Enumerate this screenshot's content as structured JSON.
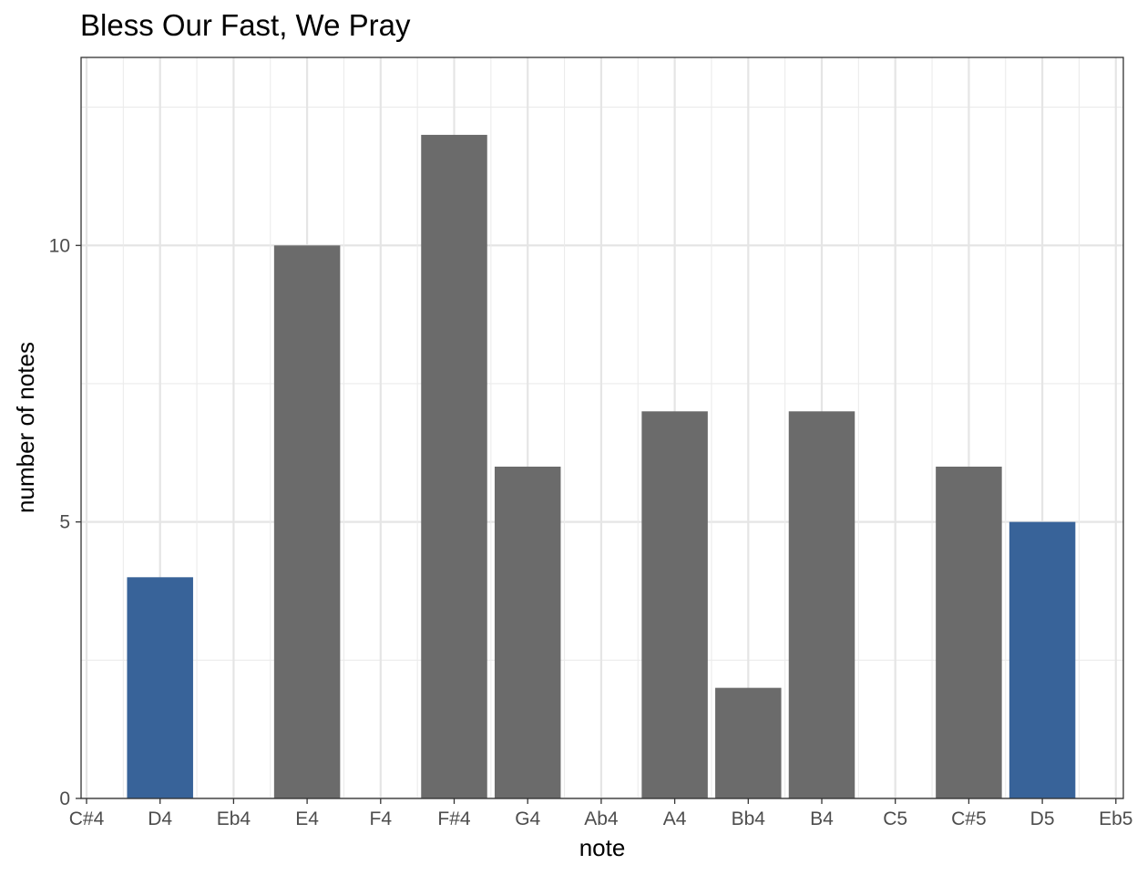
{
  "chart_data": {
    "type": "bar",
    "title": "Bless Our Fast, We Pray",
    "xlabel": "note",
    "ylabel": "number of notes",
    "categories": [
      "C#4",
      "D4",
      "Eb4",
      "E4",
      "F4",
      "F#4",
      "G4",
      "Ab4",
      "A4",
      "Bb4",
      "B4",
      "C5",
      "C#5",
      "D5",
      "Eb5"
    ],
    "values": [
      0,
      4,
      0,
      10,
      0,
      12,
      6,
      0,
      7,
      2,
      7,
      0,
      6,
      5,
      0
    ],
    "highlighted": [
      "D4",
      "D5"
    ],
    "colors": {
      "default": "#6b6b6b",
      "highlight": "#386399"
    },
    "ylim": [
      0,
      13.4
    ],
    "yticks": [
      "0",
      "5",
      "10"
    ],
    "ytick_values": [
      0,
      5,
      10
    ],
    "grid": true,
    "legend": "none"
  }
}
